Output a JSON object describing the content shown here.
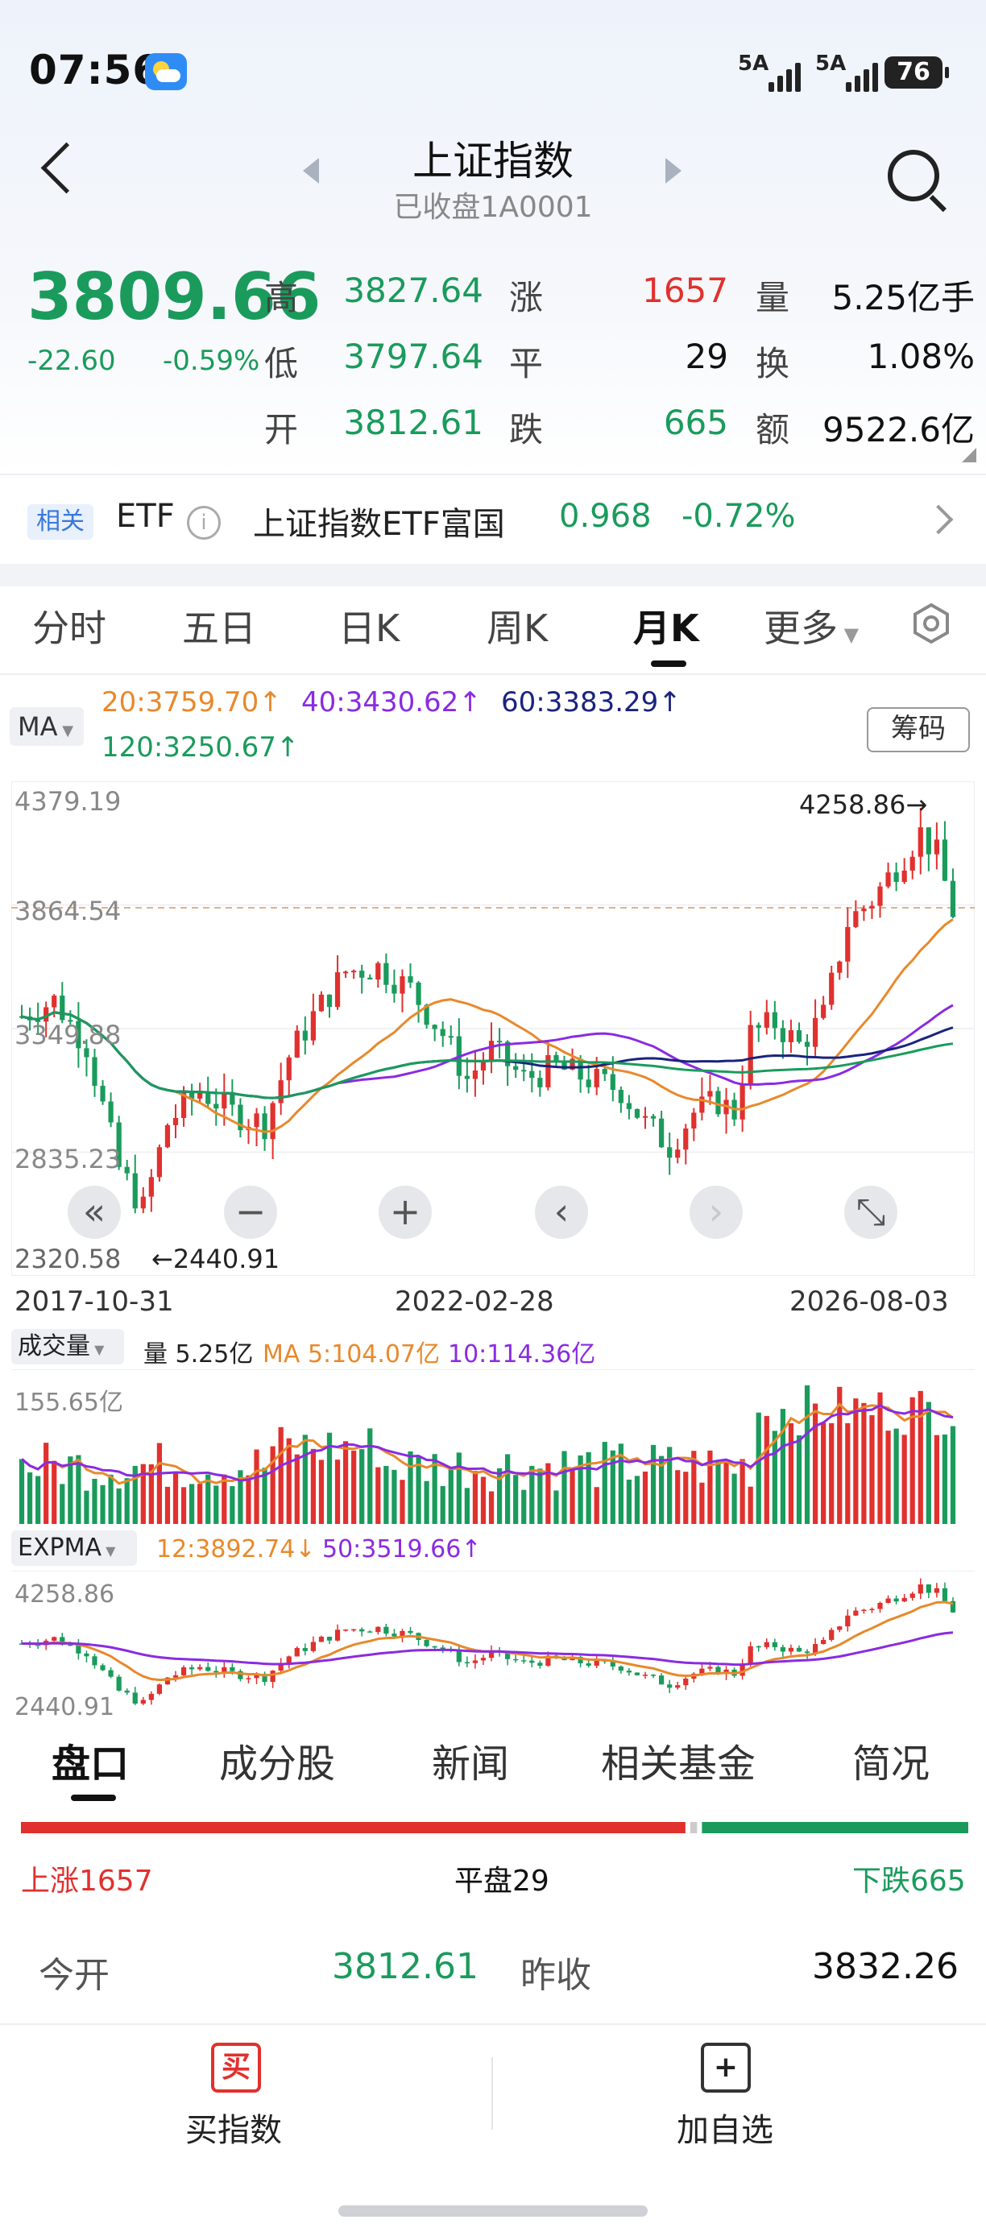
{
  "status": {
    "time": "07:56",
    "net1": "5A",
    "net2": "5A",
    "battery": "76"
  },
  "header": {
    "title": "上证指数",
    "subtitle": "已收盘1A0001"
  },
  "quote": {
    "price": "3809.66",
    "change": "-22.60",
    "change_pct": "-0.59%",
    "high_label": "高",
    "high": "3827.64",
    "low_label": "低",
    "low": "3797.64",
    "open_label": "开",
    "open": "3812.61",
    "up_label": "涨",
    "up": "1657",
    "flat_label": "平",
    "flat": "29",
    "down_label": "跌",
    "down": "665",
    "vol_label": "量",
    "vol": "5.25亿手",
    "turn_label": "换",
    "turn": "1.08%",
    "amt_label": "额",
    "amt": "9522.6亿"
  },
  "etf": {
    "tag": "相关",
    "label": "ETF",
    "name": "上证指数ETF富国",
    "price": "0.968",
    "pct": "-0.72%"
  },
  "tabs": [
    "分时",
    "五日",
    "日K",
    "周K",
    "月K",
    "更多"
  ],
  "active_tab": "月K",
  "ma": {
    "selector": "MA",
    "ma20": "20:3759.70↑",
    "ma40": "40:3430.62↑",
    "ma60": "60:3383.29↑",
    "ma120": "120:3250.67↑",
    "chip_button": "筹码"
  },
  "kline": {
    "axis": [
      "4379.19",
      "3864.54",
      "3349.88",
      "2835.23",
      "2320.58"
    ],
    "max_label": "4258.86→",
    "min_label": "←2440.91",
    "dates": [
      "2017-10-31",
      "2022-02-28",
      "2026-08-03"
    ],
    "controls": [
      "«",
      "−",
      "+",
      "‹",
      "›",
      "⤡"
    ]
  },
  "volume": {
    "selector": "成交量",
    "vol": "量 5.25亿",
    "ma5": "MA 5:104.07亿",
    "ma10": "10:114.36亿",
    "axis_max": "155.65亿"
  },
  "expma": {
    "selector": "EXPMA",
    "e12": "12:3892.74↓",
    "e50": "50:3519.66↑",
    "axis_max": "4258.86",
    "axis_min": "2440.91"
  },
  "bottom_tabs": [
    "盘口",
    "成分股",
    "新闻",
    "相关基金",
    "简况"
  ],
  "breadth": {
    "up": "上涨1657",
    "flat": "平盘29",
    "down": "下跌665"
  },
  "today": {
    "open_label": "今开",
    "open": "3812.61",
    "prev_label": "昨收",
    "prev": "3832.26"
  },
  "actions": {
    "buy_icon": "买",
    "buy": "买指数",
    "add_icon": "+",
    "add": "加自选"
  },
  "colors": {
    "up": "#e0312e",
    "down": "#1a9b5c",
    "ma20": "#e8892b",
    "ma40": "#8a2be2",
    "ma60": "#1a237e",
    "ma120": "#1a9b5c"
  },
  "chart_data": {
    "type": "candlestick",
    "x_range": [
      "2017-10-31",
      "2026-08-03"
    ],
    "ylim": [
      2320.58,
      4379.19
    ],
    "max": 4258.86,
    "min": 2440.91,
    "series": [
      {
        "name": "MA20",
        "value": 3759.7
      },
      {
        "name": "MA40",
        "value": 3430.62
      },
      {
        "name": "MA60",
        "value": 3383.29
      },
      {
        "name": "MA120",
        "value": 3250.67
      }
    ],
    "volume": {
      "latest": "5.25亿",
      "ma5": "104.07亿",
      "ma10": "114.36亿",
      "max": "155.65亿"
    },
    "expma": {
      "ema12": 3892.74,
      "ema50": 3519.66
    }
  }
}
